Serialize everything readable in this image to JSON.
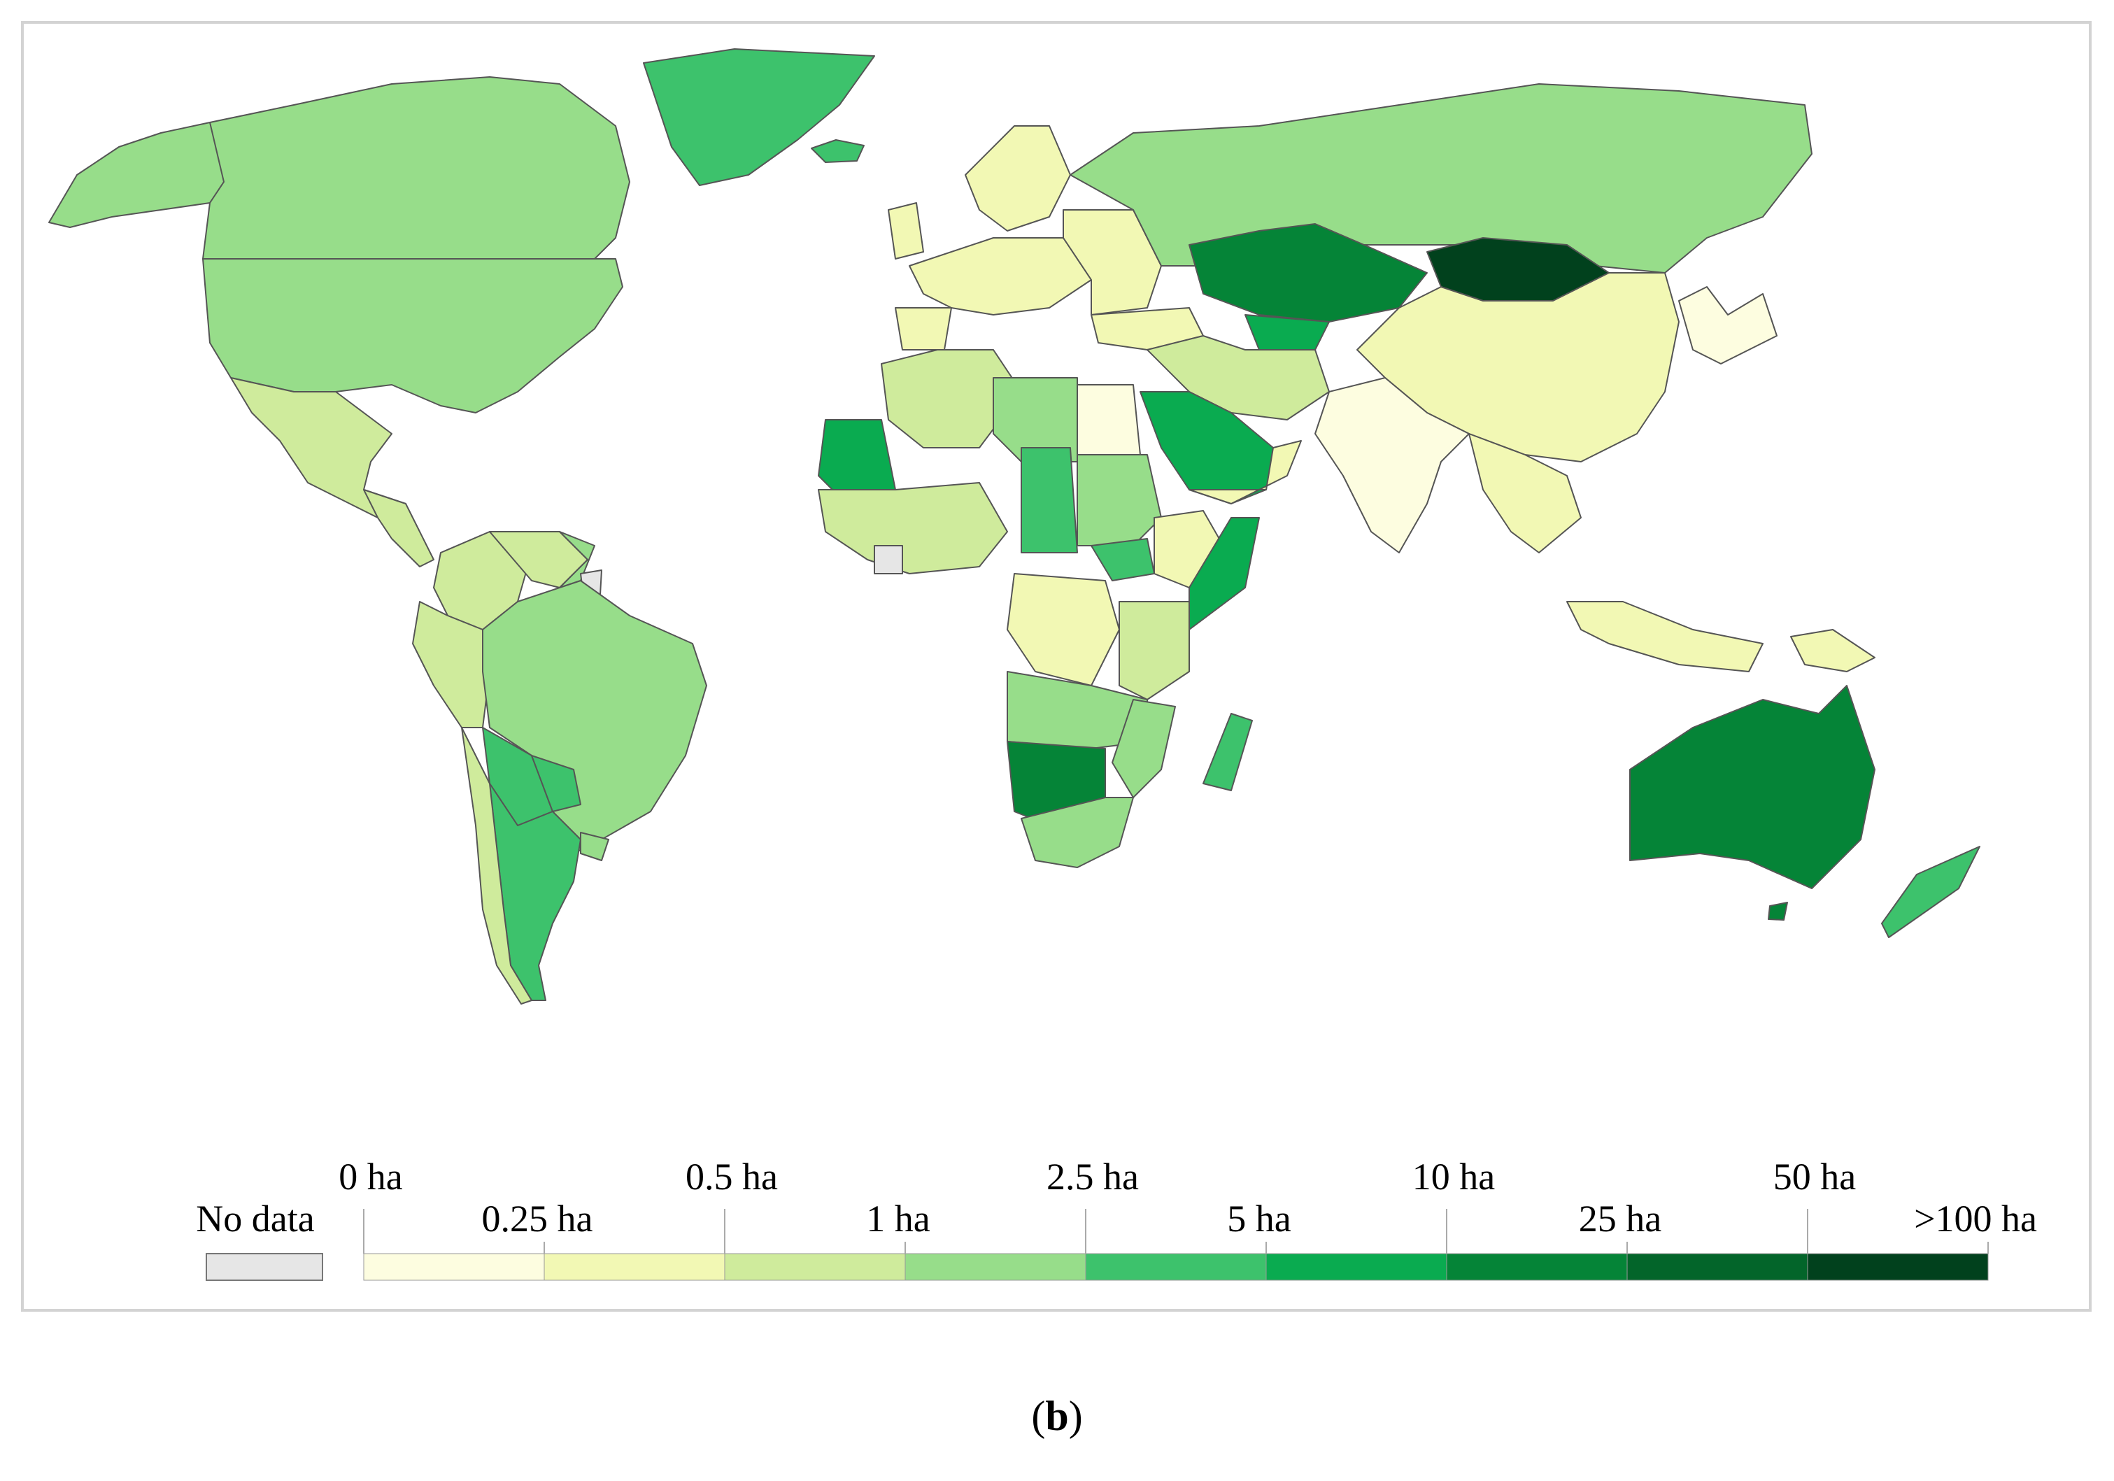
{
  "map": {
    "colors": {
      "no_data": "#e6e6e6",
      "ocean": "#ffffff",
      "border": "#555555"
    }
  },
  "legend": {
    "no_data_label": "No data",
    "no_data_color": "#e6e6e6",
    "bins": [
      {
        "color": "#fdfde0"
      },
      {
        "color": "#f2f8b4"
      },
      {
        "color": "#cfeb9c"
      },
      {
        "color": "#97dd8a"
      },
      {
        "color": "#3dc26c"
      },
      {
        "color": "#0aab50"
      },
      {
        "color": "#058437"
      },
      {
        "color": "#03652a"
      },
      {
        "color": "#01411d"
      }
    ],
    "upper_labels": [
      "0 ha",
      "0.5 ha",
      "2.5 ha",
      "10 ha",
      "50 ha"
    ],
    "lower_labels": [
      "0.25 ha",
      "1 ha",
      "5 ha",
      "25 ha",
      ">100 ha"
    ]
  },
  "caption": {
    "open": "(",
    "letter": "b",
    "close": ")"
  }
}
